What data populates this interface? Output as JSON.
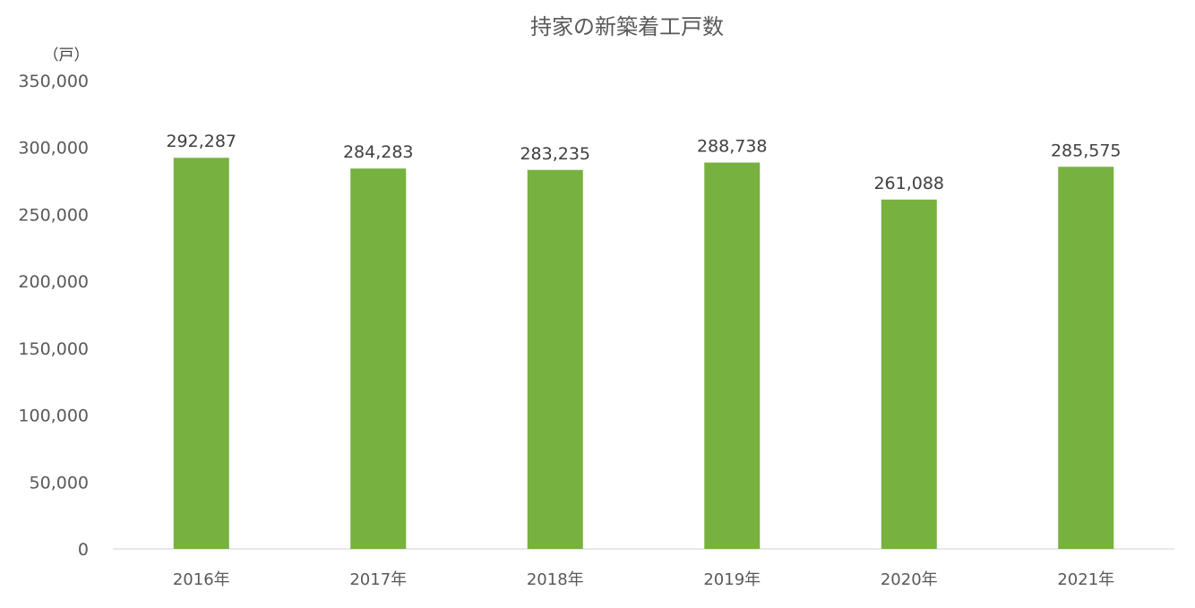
{
  "chart_data": {
    "type": "bar",
    "title": "持家の新築着工戸数",
    "unit_label": "（戸）",
    "categories": [
      "2016年",
      "2017年",
      "2018年",
      "2019年",
      "2020年",
      "2021年"
    ],
    "values": [
      292287,
      284283,
      283235,
      288738,
      261088,
      285575
    ],
    "data_labels": [
      "292,287",
      "284,283",
      "283,235",
      "288,738",
      "261,088",
      "285,575"
    ],
    "yticks": [
      "0",
      "50,000",
      "100,000",
      "150,000",
      "200,000",
      "250,000",
      "300,000",
      "350,000"
    ],
    "ytick_values": [
      0,
      50000,
      100000,
      150000,
      200000,
      250000,
      300000,
      350000
    ],
    "ylim": [
      0,
      350000
    ],
    "grid": false,
    "bar_color": "#77B140",
    "axis_color": "#D9D9D9"
  }
}
